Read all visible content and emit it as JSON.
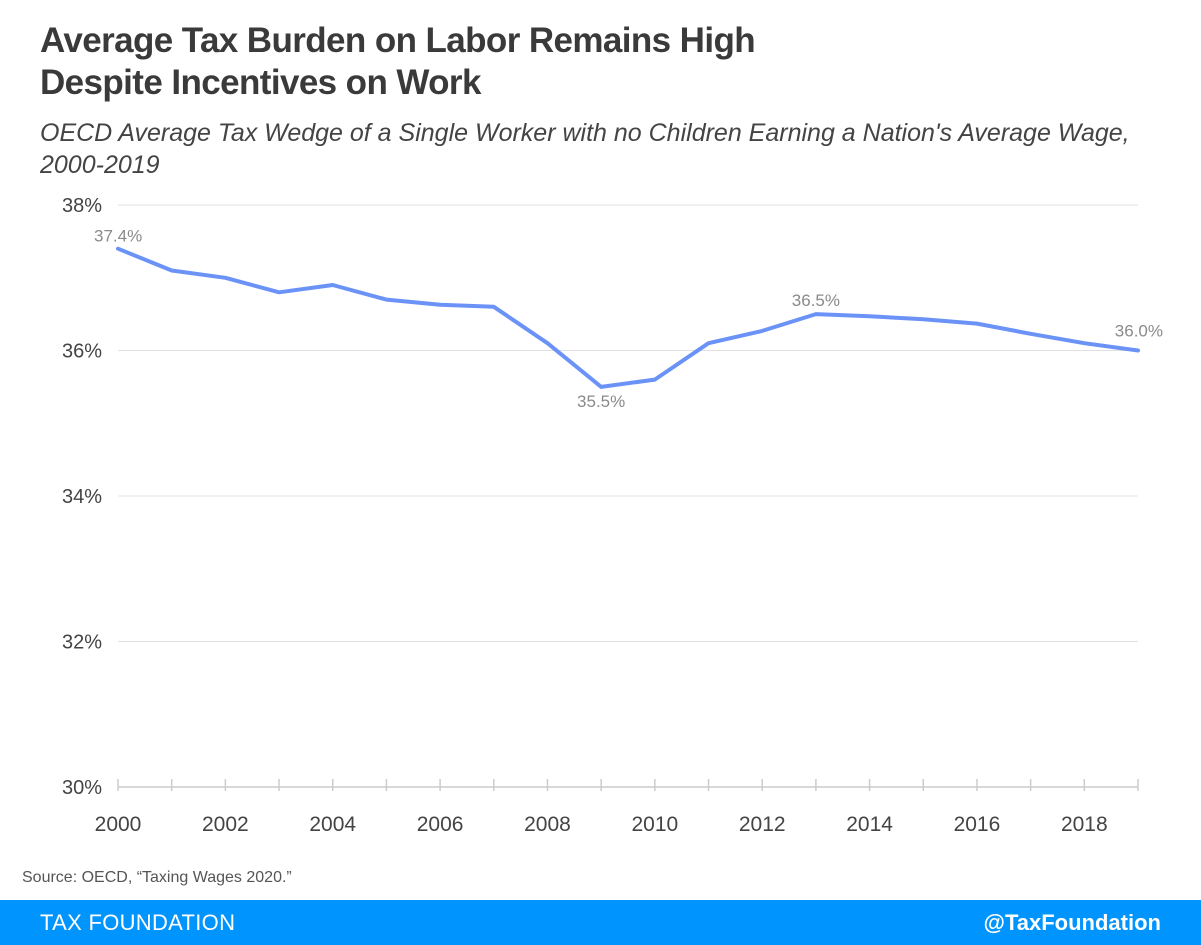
{
  "title_line1": "Average Tax Burden on Labor Remains High",
  "title_line2": "Despite Incentives on Work",
  "subtitle": "OECD Average Tax Wedge of a Single Worker with no Children Earning a Nation's Average Wage, 2000-2019",
  "source": "Source: OECD, “Taxing Wages 2020.”",
  "footer": {
    "brand": "TAX FOUNDATION",
    "handle": "@TaxFoundation"
  },
  "colors": {
    "line": "#6b93f7",
    "footer": "#0094ff",
    "grid": "#e0e0e0",
    "axis": "#cccccc",
    "data_label": "#8a8a8a"
  },
  "chart_data": {
    "type": "line",
    "x": [
      2000,
      2001,
      2002,
      2003,
      2004,
      2005,
      2006,
      2007,
      2008,
      2009,
      2010,
      2011,
      2012,
      2013,
      2014,
      2015,
      2016,
      2017,
      2018,
      2019
    ],
    "series": [
      {
        "values": [
          37.4,
          37.1,
          37.0,
          36.8,
          36.9,
          36.7,
          36.63,
          36.6,
          36.1,
          35.5,
          35.6,
          36.1,
          36.27,
          36.5,
          36.47,
          36.43,
          36.37,
          36.23,
          36.1,
          36.0
        ]
      }
    ],
    "data_labels": [
      {
        "x": 2000,
        "value": 37.4,
        "text": "37.4%"
      },
      {
        "x": 2009,
        "value": 35.5,
        "text": "35.5%"
      },
      {
        "x": 2013,
        "value": 36.5,
        "text": "36.5%"
      },
      {
        "x": 2019,
        "value": 36.0,
        "text": "36.0%"
      }
    ],
    "ylim": [
      30,
      38
    ],
    "y_ticks": [
      30,
      32,
      34,
      36,
      38
    ],
    "y_tick_labels": [
      "30%",
      "32%",
      "34%",
      "36%",
      "38%"
    ],
    "x_ticks": [
      2000,
      2002,
      2004,
      2006,
      2008,
      2010,
      2012,
      2014,
      2016,
      2018
    ],
    "x_tick_labels": [
      "2000",
      "2002",
      "2004",
      "2006",
      "2008",
      "2010",
      "2012",
      "2014",
      "2016",
      "2018"
    ],
    "xlabel": "",
    "ylabel": "",
    "grid": true,
    "legend": "none"
  }
}
